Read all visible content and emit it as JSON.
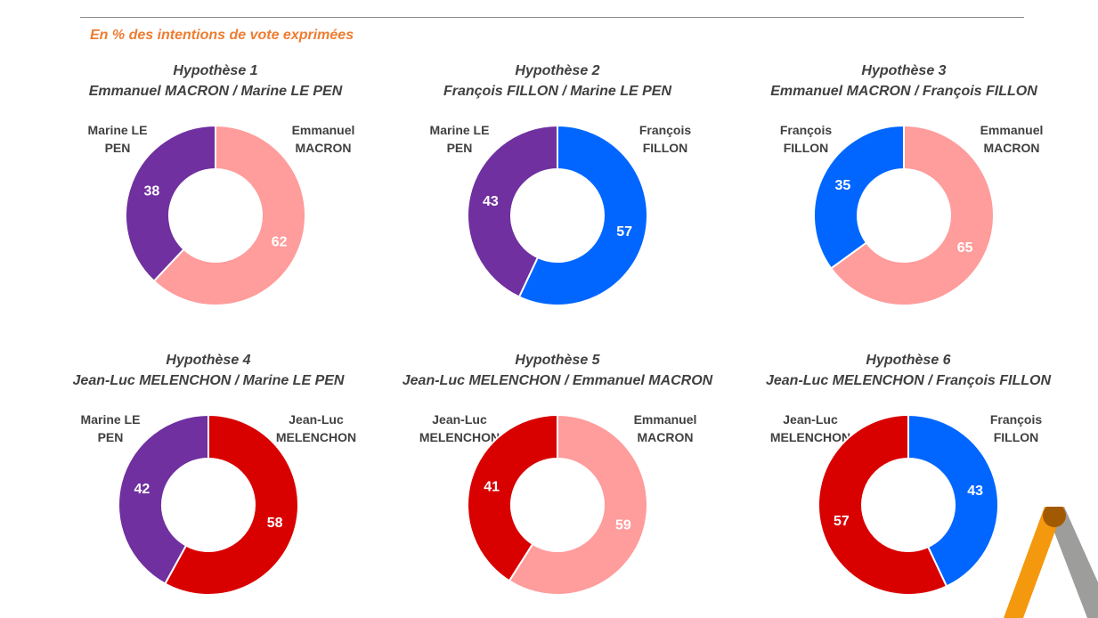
{
  "header": {
    "subtitle": "En % des intentions de vote exprimées"
  },
  "colors": {
    "macron": "#FF9C9C",
    "le_pen": "#7030A0",
    "fillon": "#0066FF",
    "melenchon": "#D90000",
    "subtitle": "#ED7D31",
    "logo_orange": "#F39200",
    "logo_gray": "#9D9D9C"
  },
  "chart_data": [
    {
      "type": "pie",
      "title": "Hypothèse 1",
      "subtitle": "Emmanuel MACRON / Marine LE PEN",
      "series": [
        {
          "name": "Emmanuel MACRON",
          "legend": "Emmanuel\nMACRON",
          "value": 62,
          "color": "#FF9C9C"
        },
        {
          "name": "Marine LE PEN",
          "legend": "Marine LE\nPEN",
          "value": 38,
          "color": "#7030A0"
        }
      ]
    },
    {
      "type": "pie",
      "title": "Hypothèse 2",
      "subtitle": "François FILLON / Marine LE PEN",
      "series": [
        {
          "name": "François FILLON",
          "legend": "François\nFILLON",
          "value": 57,
          "color": "#0066FF"
        },
        {
          "name": "Marine LE PEN",
          "legend": "Marine LE\nPEN",
          "value": 43,
          "color": "#7030A0"
        }
      ]
    },
    {
      "type": "pie",
      "title": "Hypothèse 3",
      "subtitle": "Emmanuel MACRON / François FILLON",
      "series": [
        {
          "name": "Emmanuel MACRON",
          "legend": "Emmanuel\nMACRON",
          "value": 65,
          "color": "#FF9C9C"
        },
        {
          "name": "François FILLON",
          "legend": "François\nFILLON",
          "value": 35,
          "color": "#0066FF"
        }
      ]
    },
    {
      "type": "pie",
      "title": "Hypothèse 4",
      "subtitle": "Jean-Luc MELENCHON / Marine LE PEN",
      "series": [
        {
          "name": "Jean-Luc MELENCHON",
          "legend": "Jean-Luc\nMELENCHON",
          "value": 58,
          "color": "#D90000"
        },
        {
          "name": "Marine LE PEN",
          "legend": "Marine LE\nPEN",
          "value": 42,
          "color": "#7030A0"
        }
      ]
    },
    {
      "type": "pie",
      "title": "Hypothèse 5",
      "subtitle": "Jean-Luc MELENCHON / Emmanuel MACRON",
      "series": [
        {
          "name": "Emmanuel MACRON",
          "legend": "Emmanuel\nMACRON",
          "value": 59,
          "color": "#FF9C9C"
        },
        {
          "name": "Jean-Luc MELENCHON",
          "legend": "Jean-Luc\nMELENCHON",
          "value": 41,
          "color": "#D90000"
        }
      ]
    },
    {
      "type": "pie",
      "title": "Hypothèse 6",
      "subtitle": "Jean-Luc MELENCHON / François FILLON",
      "series": [
        {
          "name": "François FILLON",
          "legend": "François\nFILLON",
          "value": 43,
          "color": "#0066FF"
        },
        {
          "name": "Jean-Luc MELENCHON",
          "legend": "Jean-Luc\nMELENCHON",
          "value": 57,
          "color": "#D90000"
        }
      ]
    }
  ]
}
